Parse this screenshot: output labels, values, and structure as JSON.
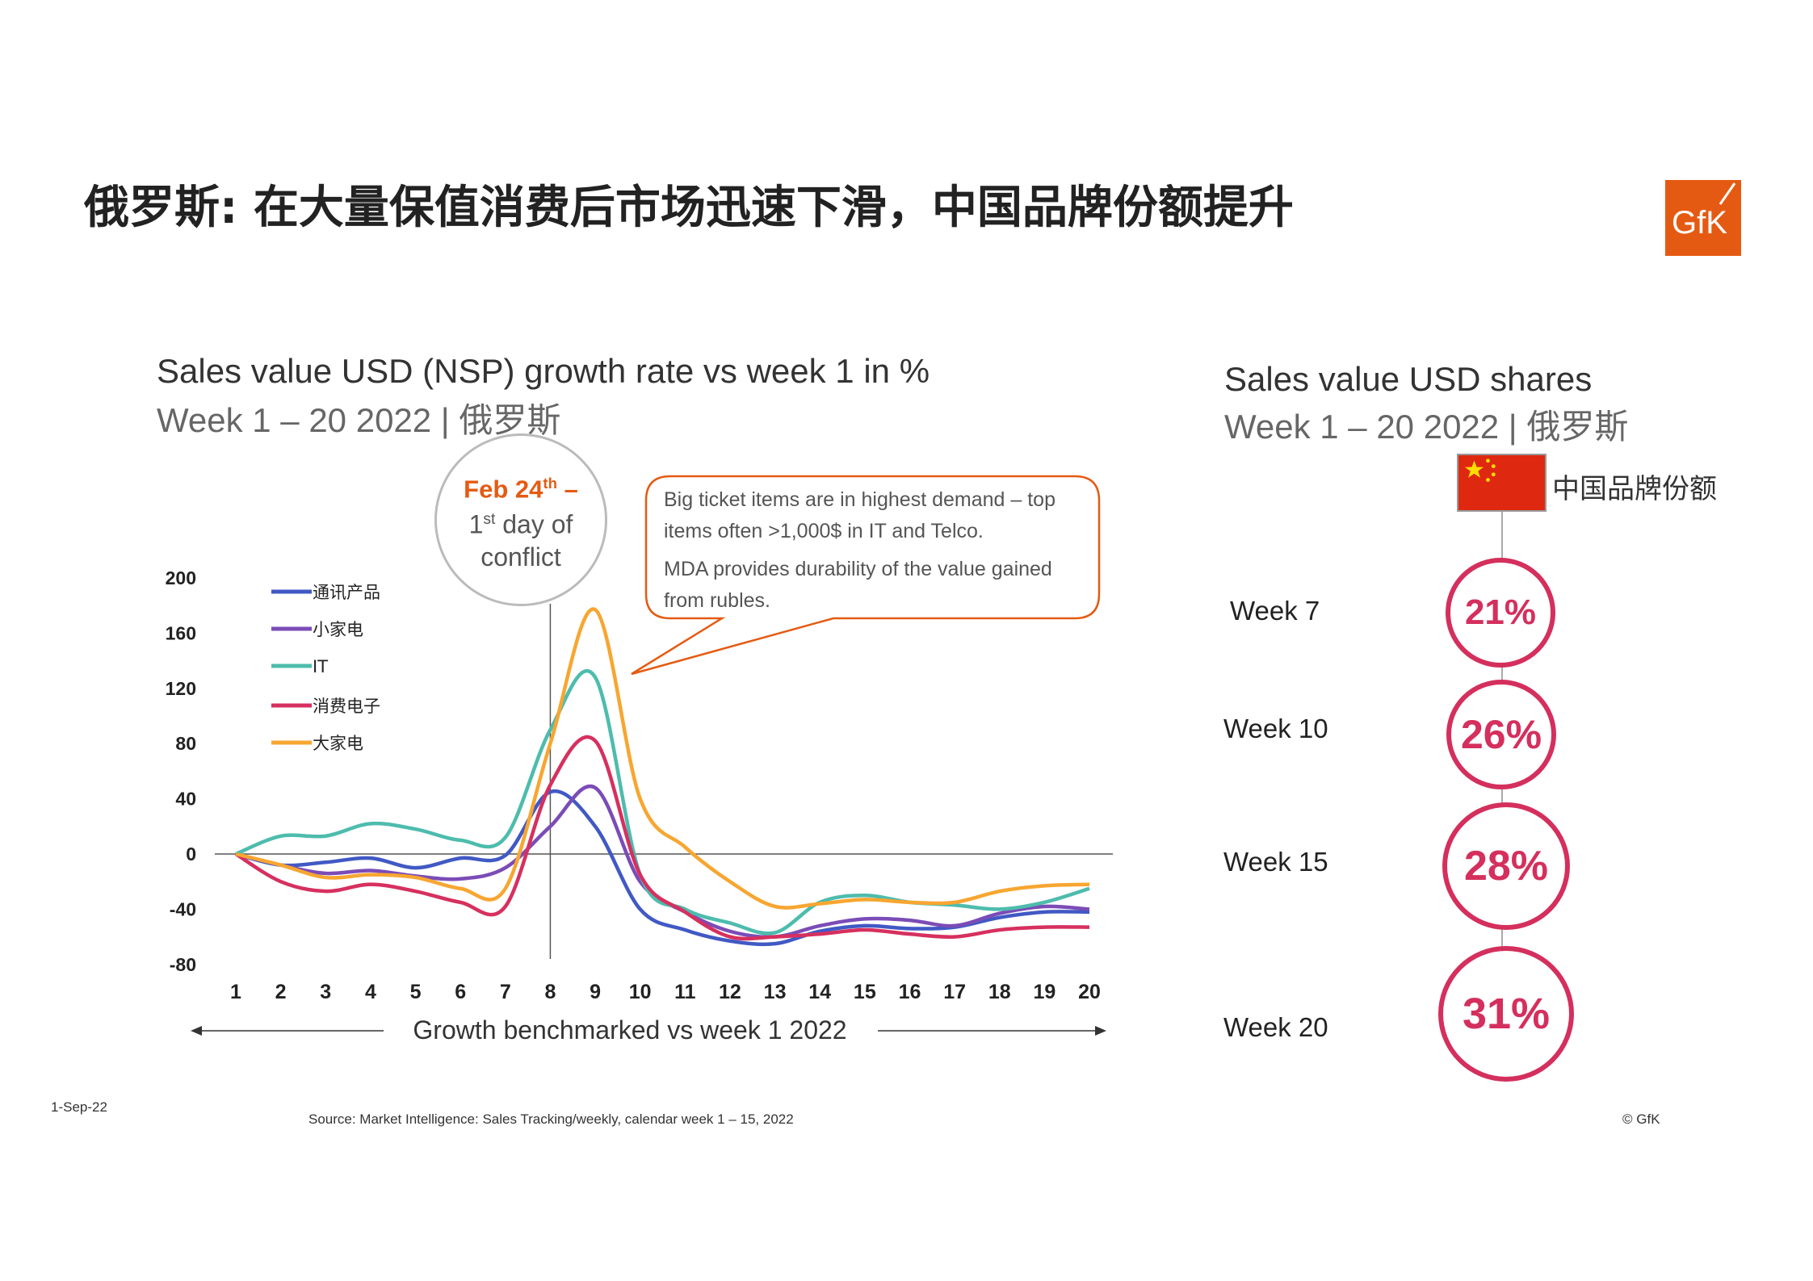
{
  "title": "俄罗斯: 在大量保值消费后市场迅速下滑，中国品牌份额提升",
  "logo": "GfK",
  "left_chart": {
    "title": "Sales value USD (NSP) growth rate vs week 1 in %",
    "subtitle": "Week 1 – 20 2022 | 俄罗斯",
    "x_axis_title": "Growth benchmarked vs week 1 2022"
  },
  "annotation_conflict": {
    "line1": "Feb 24",
    "line1_sup": "th",
    "line1_suffix": " –",
    "line2_num": "1",
    "line2_sup": "st",
    "line2_rest": " day of",
    "line3": "conflict"
  },
  "callout": {
    "p1": "Big ticket items are in highest demand – top items often >1,000$ in IT and Telco.",
    "p2": "MDA provides durability of the value gained from rubles."
  },
  "chart_data": {
    "type": "line",
    "title": "Sales value USD (NSP) growth rate vs week 1 in %",
    "xlabel": "Growth benchmarked vs week 1 2022",
    "ylabel": "",
    "categories": [
      "1",
      "2",
      "3",
      "4",
      "5",
      "6",
      "7",
      "8",
      "9",
      "10",
      "11",
      "12",
      "13",
      "14",
      "15",
      "16",
      "17",
      "18",
      "19",
      "20"
    ],
    "yticks": [
      "200",
      "160",
      "120",
      "80",
      "40",
      "0",
      "-40",
      "-80"
    ],
    "ylim": [
      -80,
      200
    ],
    "legend_position": "top-left",
    "event_marker_week": 8,
    "series": [
      {
        "name": "通讯产品",
        "color": "#4159c4",
        "values": [
          0,
          -8,
          -6,
          -3,
          -10,
          -3,
          -1,
          45,
          20,
          -40,
          -55,
          -63,
          -65,
          -56,
          -52,
          -54,
          -53,
          -46,
          -42,
          -42
        ]
      },
      {
        "name": "小家电",
        "color": "#7b4cb7",
        "values": [
          0,
          -8,
          -14,
          -12,
          -16,
          -18,
          -10,
          20,
          48,
          -20,
          -42,
          -56,
          -60,
          -52,
          -47,
          -48,
          -52,
          -43,
          -38,
          -40
        ]
      },
      {
        "name": "IT",
        "color": "#4dbcad",
        "values": [
          0,
          13,
          13,
          22,
          18,
          10,
          12,
          90,
          128,
          -15,
          -40,
          -50,
          -57,
          -35,
          -30,
          -35,
          -37,
          -40,
          -35,
          -25
        ]
      },
      {
        "name": "消费电子",
        "color": "#d6305f",
        "values": [
          0,
          -20,
          -27,
          -22,
          -27,
          -35,
          -38,
          50,
          82,
          -15,
          -42,
          -60,
          -60,
          -58,
          -55,
          -58,
          -60,
          -55,
          -53,
          -53
        ]
      },
      {
        "name": "大家电",
        "color": "#f7a631",
        "values": [
          0,
          -8,
          -17,
          -15,
          -17,
          -25,
          -25,
          80,
          177,
          40,
          5,
          -20,
          -38,
          -36,
          -33,
          -35,
          -35,
          -27,
          -23,
          -22
        ]
      }
    ]
  },
  "right_panel": {
    "title": "Sales value USD  shares",
    "subtitle": "Week 1 – 20 2022 | 俄罗斯",
    "flag_label": "中国品牌份额",
    "color": "#d42f5d",
    "weeks": [
      {
        "label": "Week 7",
        "share": "21%"
      },
      {
        "label": "Week 10",
        "share": "26%"
      },
      {
        "label": "Week 15",
        "share": "28%"
      },
      {
        "label": "Week 20",
        "share": "31%"
      }
    ]
  },
  "footer": {
    "date": "1-Sep-22",
    "source": "Source: Market Intelligence: Sales Tracking/weekly, calendar week 1 – 15, 2022",
    "copyright": "© GfK"
  }
}
